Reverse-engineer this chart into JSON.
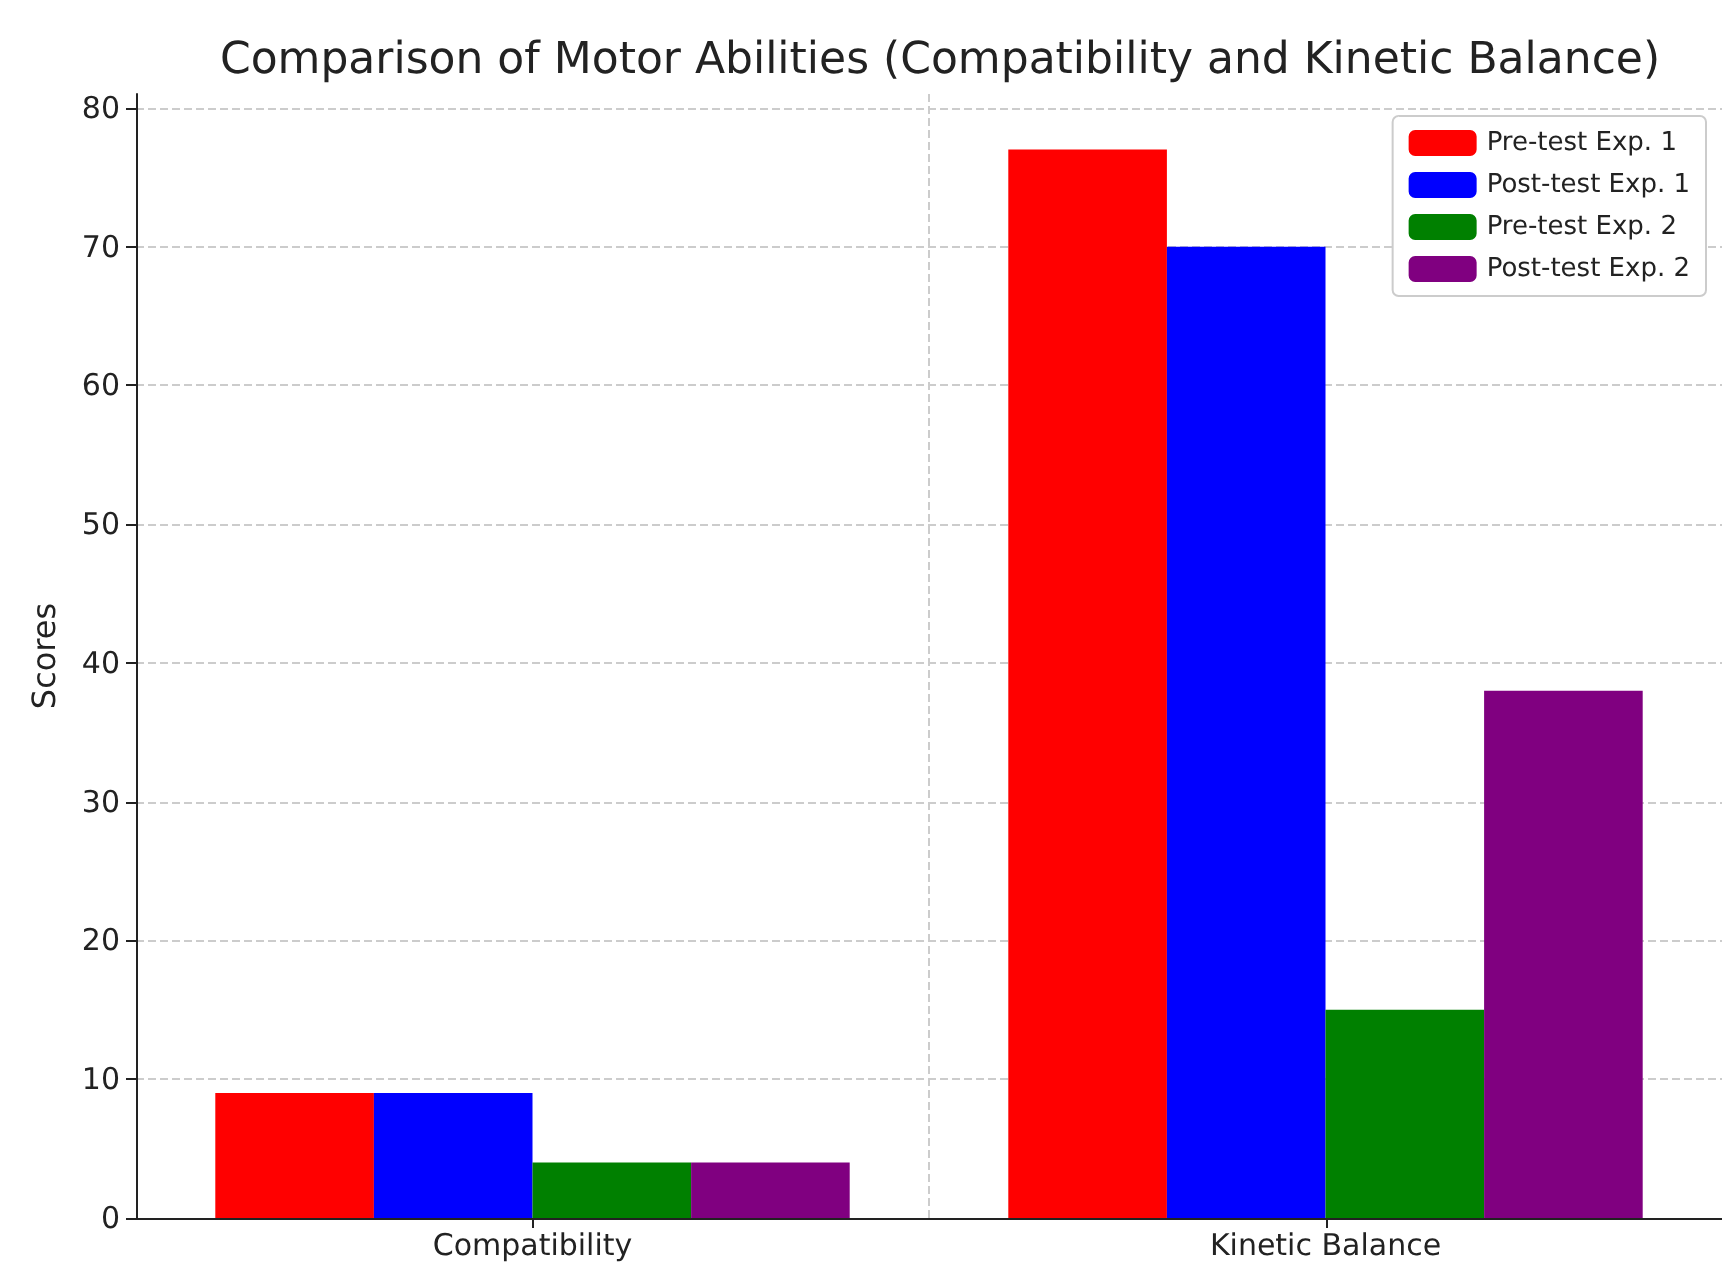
{
  "chart_data": {
    "type": "bar",
    "title": "Comparison of Motor Abilities (Compatibility and Kinetic Balance)",
    "ylabel": "Scores",
    "categories": [
      "Compatibility",
      "Kinetic Balance"
    ],
    "series": [
      {
        "name": "Pre-test Exp. 1",
        "color": "#ff0000",
        "values": [
          9,
          77
        ]
      },
      {
        "name": "Post-test Exp. 1",
        "color": "#0000ff",
        "values": [
          9,
          70
        ]
      },
      {
        "name": "Pre-test Exp. 2",
        "color": "#008000",
        "values": [
          4,
          15
        ]
      },
      {
        "name": "Post-test Exp. 2",
        "color": "#800080",
        "values": [
          4,
          38
        ]
      }
    ],
    "ylim": [
      0,
      81
    ],
    "yticks": [
      0,
      10,
      20,
      30,
      40,
      50,
      60,
      70,
      80
    ],
    "grid": true,
    "legend": "top right"
  }
}
